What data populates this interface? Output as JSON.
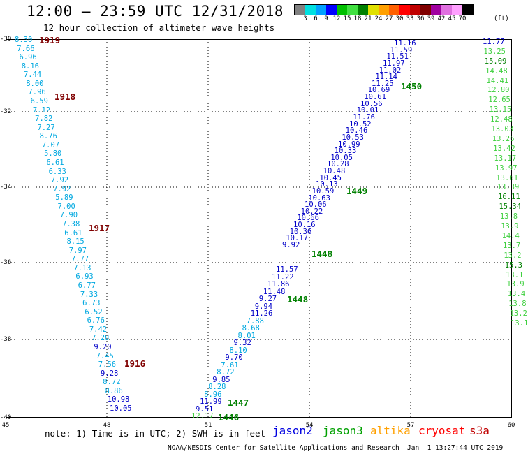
{
  "title": "12:00 – 23:59 UTC 12/31/2018",
  "subtitle": "12 hour collection of altimeter wave heights",
  "colorbar": {
    "colors": [
      "#808080",
      "#00e0e0",
      "#00a0ff",
      "#0000ff",
      "#00c000",
      "#40e040",
      "#008000",
      "#e0e000",
      "#ffa000",
      "#ff6000",
      "#ff0000",
      "#c00000",
      "#800000",
      "#a000a0",
      "#e070e0",
      "#ffa0ff",
      "#000000"
    ],
    "labels": [
      "3",
      "6",
      "9",
      "12",
      "15",
      "18",
      "21",
      "24",
      "27",
      "30",
      "33",
      "36",
      "39",
      "42",
      "45",
      "70"
    ],
    "unit": "(ft)"
  },
  "axes": {
    "y_labels": [
      "-30",
      "-32",
      "-34",
      "-36",
      "-38",
      "-40"
    ],
    "x_labels": [
      "45",
      "48",
      "51",
      "54",
      "57",
      "60"
    ]
  },
  "times": [
    "1919",
    "1918",
    "1917",
    "1916",
    "1450",
    "1449",
    "1448",
    "1448",
    "1447",
    "1446"
  ],
  "wave_left": [
    "8.30",
    "7.66",
    "6.96",
    "8.16",
    "7.44",
    "8.00",
    "7.96",
    "6.59",
    "7.12",
    "7.82",
    "7.27",
    "8.76",
    "7.07",
    "5.80",
    "6.61",
    "6.33",
    "7.92",
    "7.92",
    "5.89",
    "7.00",
    "7.90",
    "7.38",
    "6.61",
    "8.15",
    "7.97",
    "7.77",
    "7.13",
    "6.93",
    "6.77",
    "7.33",
    "6.73",
    "6.52",
    "6.76",
    "7.42",
    "7.28",
    "9.20",
    "7.45",
    "7.56",
    "9.28",
    "8.72",
    "8.86",
    "10.98",
    "10.05"
  ],
  "wave_jason_lower": [
    "11.57",
    "11.22",
    "11.86",
    "11.48",
    "9.27",
    "9.94",
    "11.26",
    "7.88",
    "8.68",
    "8.01",
    "9.32",
    "8.10",
    "9.70",
    "7.61",
    "8.72",
    "9.85",
    "8.28",
    "8.96",
    "11.99",
    "9.51",
    "12.17"
  ],
  "wave_jason_upper": [
    "11.16",
    "11.59",
    "11.51",
    "11.97",
    "11.02",
    "11.14",
    "11.25",
    "10.69",
    "10.61",
    "10.56",
    "10.01",
    "11.76",
    "10.52",
    "10.46",
    "10.53",
    "10.99",
    "10.33",
    "10.05",
    "10.28",
    "10.48",
    "10.45",
    "10.13",
    "10.59",
    "10.63",
    "10.06",
    "10.22",
    "10.66",
    "10.16",
    "10.36",
    "10.17",
    "9.92"
  ],
  "wave_right": [
    "11.77",
    "13.25",
    "15.09",
    "14.48",
    "14.41",
    "12.80",
    "12.65",
    "13.15",
    "12.48",
    "13.03",
    "13.26",
    "13.42",
    "13.17",
    "13.97",
    "13.61",
    "13.39",
    "16.11",
    "15.34",
    "13.8",
    "13.9",
    "14.4",
    "13.7",
    "13.2",
    "15.3",
    "13.1",
    "13.9",
    "13.4",
    "13.8",
    "13.2",
    "13.1"
  ],
  "note": "note: 1) Time is in UTC; 2) SWH is in feet",
  "legend": [
    "jason2",
    "jason3",
    "altika",
    "cryosat",
    "s3a"
  ],
  "footer": "NOAA/NESDIS Center for Satellite Applications and Research",
  "footer_time": "Jan  1 13:27:44 UTC 2019"
}
